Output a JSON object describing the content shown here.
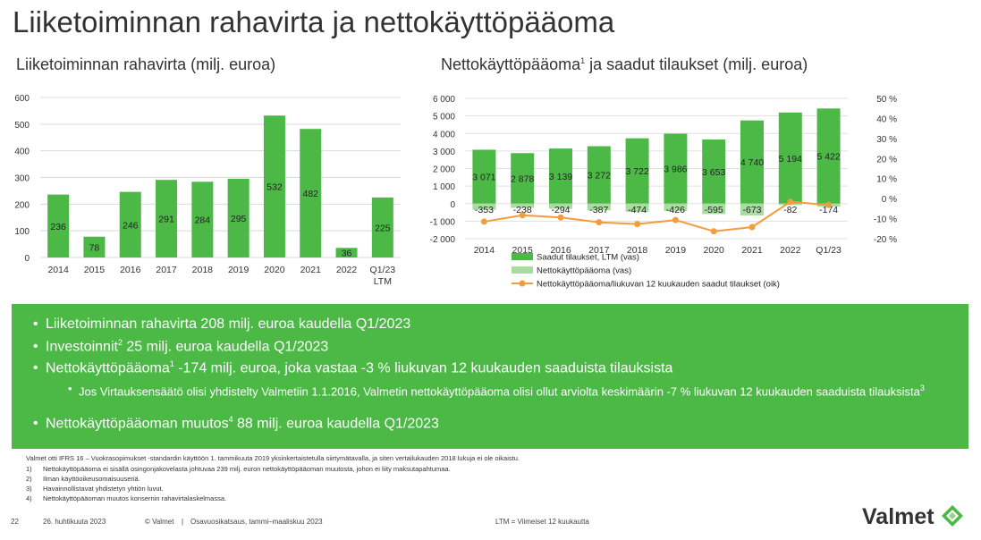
{
  "title": "Liiketoiminnan rahavirta ja nettokäyttöpääoma",
  "chart_data": [
    {
      "type": "bar",
      "title": "Liiketoiminnan rahavirta (milj. euroa)",
      "categories": [
        "2014",
        "2015",
        "2016",
        "2017",
        "2018",
        "2019",
        "2020",
        "2021",
        "2022",
        "Q1/23\nLTM"
      ],
      "category_labels": [
        [
          "2014"
        ],
        [
          "2015"
        ],
        [
          "2016"
        ],
        [
          "2017"
        ],
        [
          "2018"
        ],
        [
          "2019"
        ],
        [
          "2020"
        ],
        [
          "2021"
        ],
        [
          "2022"
        ],
        [
          "Q1/23",
          "LTM"
        ]
      ],
      "values": [
        236,
        78,
        246,
        291,
        284,
        295,
        532,
        482,
        36,
        225
      ],
      "value_labels": [
        "236",
        "78",
        "246",
        "291",
        "284",
        "295",
        "532",
        "482",
        "36",
        "225"
      ],
      "ylim": [
        0,
        600
      ],
      "yticks": [
        0,
        100,
        200,
        300,
        400,
        500,
        600
      ],
      "grid": true,
      "color": "#4cb947"
    },
    {
      "type": "bar",
      "title_main": "Nettokäyttöpääoma",
      "title_sup": "1",
      "title_rest": " ja saadut tilaukset (milj. euroa)",
      "categories": [
        "2014",
        "2015",
        "2016",
        "2017",
        "2018",
        "2019",
        "2020",
        "2021",
        "2022",
        "Q1/23"
      ],
      "series": [
        {
          "name": "Saadut tilaukset, LTM (vas)",
          "color": "#4cb947",
          "values": [
            3071,
            2878,
            3139,
            3272,
            3722,
            3986,
            3653,
            4740,
            5194,
            5422
          ],
          "labels": [
            "3 071",
            "2 878",
            "3 139",
            "3 272",
            "3 722",
            "3 986",
            "3 653",
            "4 740",
            "5 194",
            "5 422"
          ]
        },
        {
          "name": "Nettokäyttöpääoma (vas)",
          "color": "#a8dca0",
          "values": [
            -353,
            -238,
            -294,
            -387,
            -474,
            -426,
            -595,
            -673,
            -82,
            -174
          ],
          "labels": [
            "-353",
            "-238",
            "-294",
            "-387",
            "-474",
            "-426",
            "-595",
            "-673",
            "-82",
            "-174"
          ]
        },
        {
          "name": "Nettokäyttöpääoma/liukuvan 12 kuukauden saadut tilaukset (oik)",
          "color": "#f39c3c",
          "type": "line",
          "axis": "right",
          "values": [
            -11.5,
            -8.3,
            -9.4,
            -11.8,
            -12.7,
            -10.7,
            -16.3,
            -14.2,
            -1.6,
            -3.2
          ]
        }
      ],
      "ylim_left": [
        -2000,
        6000
      ],
      "yticks_left": [
        "6 000",
        "5 000",
        "4 000",
        "3 000",
        "2 000",
        "1 000",
        "0",
        "-1 000",
        "-2 000"
      ],
      "ylim_right": [
        -20,
        50
      ],
      "yticks_right": [
        "50 %",
        "40 %",
        "30 %",
        "20 %",
        "10 %",
        "0 %",
        "-10 %",
        "-20 %"
      ],
      "legend": "bottom",
      "grid": true
    }
  ],
  "bullets": [
    {
      "text": "Liiketoiminnan rahavirta 208 milj. euroa kaudella Q1/2023"
    },
    {
      "pre": "Investoinnit",
      "sup": "2",
      "post": " 25 milj. euroa kaudella Q1/2023"
    },
    {
      "pre": "Nettokäyttöpääoma",
      "sup": "1",
      "post": " -174 milj. euroa, joka vastaa -3 % liukuvan 12 kuukauden saaduista tilauksista"
    },
    {
      "pre": "Nettokäyttöpääoman muutos",
      "sup": "4",
      "post": " 88 milj. euroa kaudella Q1/2023"
    }
  ],
  "subbullet": {
    "text": "Jos Virtauksensäätö olisi yhdistelty Valmetiin 1.1.2016, Valmetin nettokäyttöpääoma olisi ollut arviolta keskimäärin -7 % liukuvan 12 kuukauden saaduista tilauksista",
    "sup": "3"
  },
  "footnote_main": "Valmet otti IFRS 16 – Vuokrasopimukset -standardin käyttöön 1. tammikuuta 2019 yksinkertaistetulla siirtymätavalla, ja siten vertailukauden 2018 lukuja ei ole oikaistu.",
  "footnotes": [
    {
      "num": "1)",
      "text": "Nettokäyttöpääoma ei sisällä osingonjakovelasta johtuvaa 239 milj. euron nettokäyttöpääoman muutosta, johon ei liity maksutapahtumaa."
    },
    {
      "num": "2)",
      "text": "Ilman käyttöoikeusomaisuuseriä."
    },
    {
      "num": "3)",
      "text": "Havainnollistavat yhdistetyn yhtiön luvut."
    },
    {
      "num": "4)",
      "text": "Nettokäyttöpääoman muutos konsernin rahavirtalaskelmassa."
    }
  ],
  "footer": {
    "page": "22",
    "date": "26. huhtikuuta 2023",
    "copyright": "© Valmet",
    "separator": "|",
    "doc": "Osavuosikatsaus, tammi–maaliskuu 2023",
    "ltm": "LTM = Viimeiset 12 kuukautta",
    "logo": "Valmet"
  }
}
